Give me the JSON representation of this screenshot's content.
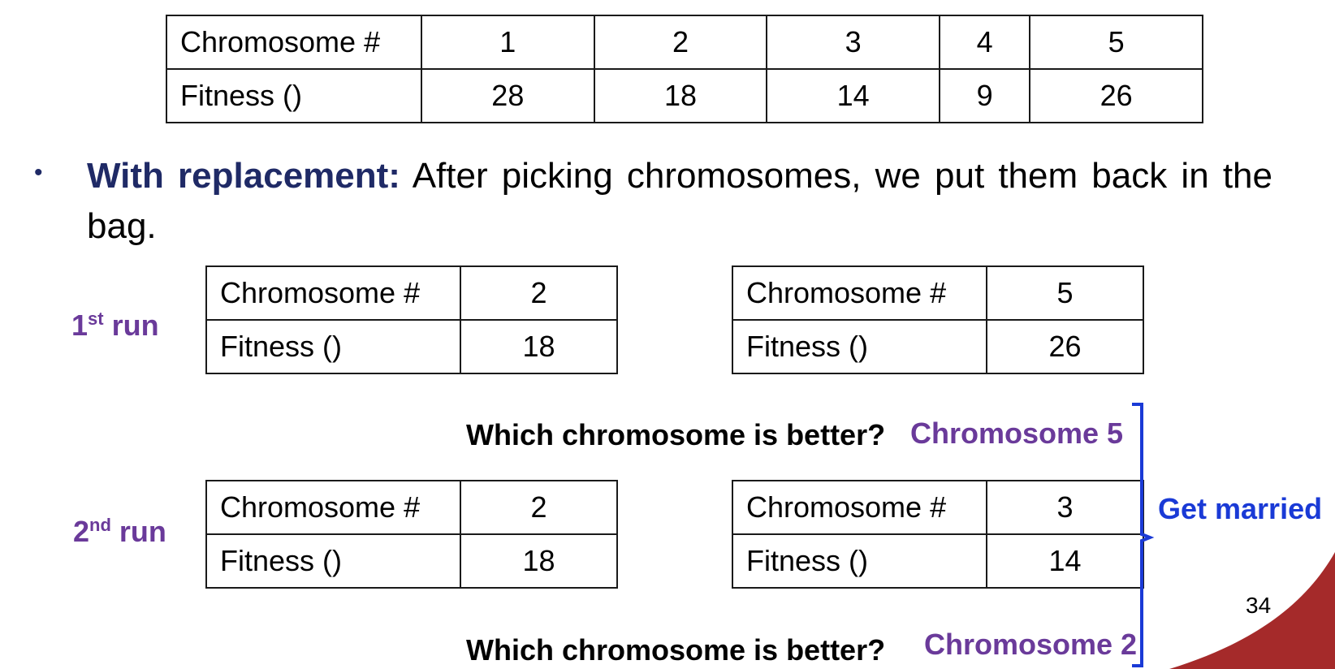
{
  "main_table": {
    "row1_label": "Chromosome #",
    "row1_values": [
      "1",
      "2",
      "3",
      "4",
      "5"
    ],
    "row2_label": "Fitness ()",
    "row2_values": [
      "28",
      "18",
      "14",
      "9",
      "26"
    ]
  },
  "bullet": {
    "symbol": "•",
    "bold": "With replacement:",
    "text": " After picking  chromosomes, we put them back in the bag."
  },
  "run1": {
    "num": "1",
    "sup": "st",
    "word": " run",
    "left_table": {
      "label1": "Chromosome #",
      "value1": "2",
      "label2": "Fitness ()",
      "value2": "18"
    },
    "right_table": {
      "label1": "Chromosome #",
      "value1": "5",
      "label2": "Fitness ()",
      "value2": "26"
    },
    "question": "Which chromosome is better?",
    "answer": "Chromosome 5"
  },
  "run2": {
    "num": "2",
    "sup": "nd",
    "word": " run",
    "left_table": {
      "label1": "Chromosome #",
      "value1": "2",
      "label2": "Fitness ()",
      "value2": "18"
    },
    "right_table": {
      "label1": "Chromosome #",
      "value1": "3",
      "label2": "Fitness ()",
      "value2": "14"
    },
    "question": "Which chromosome is better?",
    "answer": "Chromosome 2"
  },
  "married_label": "Get married",
  "page_number": "34",
  "colors": {
    "dark_blue": "#1f2a66",
    "purple": "#6a3a9a",
    "bright_blue": "#1a3ad6",
    "corner_red": "#a52a2a"
  }
}
